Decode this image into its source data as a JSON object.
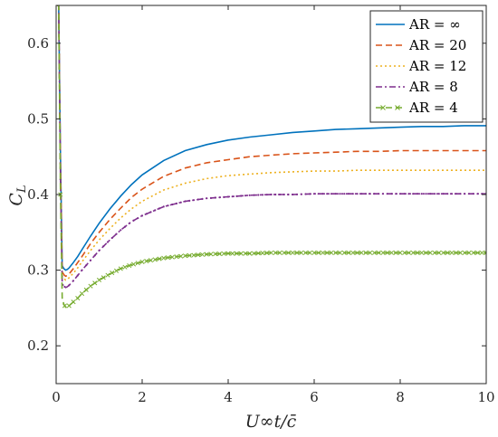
{
  "chart_data": {
    "type": "line",
    "title": "",
    "xlabel": "U∞t/c̄",
    "ylabel": "C",
    "ylabel_sub": "L",
    "xlim": [
      0,
      10
    ],
    "ylim": [
      0.15,
      0.65
    ],
    "xticks": [
      0,
      2,
      4,
      6,
      8,
      10
    ],
    "yticks": [
      0.2,
      0.3,
      0.4,
      0.5,
      0.6
    ],
    "grid": false,
    "legend_position": "top-right",
    "x": [
      0.02,
      0.06,
      0.1,
      0.14,
      0.18,
      0.22,
      0.26,
      0.3,
      0.4,
      0.5,
      0.6,
      0.8,
      1.0,
      1.25,
      1.5,
      1.75,
      2.0,
      2.5,
      3.0,
      3.5,
      4.0,
      4.5,
      5.0,
      5.5,
      6.0,
      6.5,
      7.0,
      7.5,
      8.0,
      8.5,
      9.0,
      9.5,
      10.0
    ],
    "series": [
      {
        "name": "AR = ∞",
        "color": "#0072BD",
        "dash": "solid",
        "marker": "none",
        "values": [
          0.65,
          0.65,
          0.45,
          0.306,
          0.302,
          0.3,
          0.301,
          0.303,
          0.31,
          0.318,
          0.327,
          0.345,
          0.362,
          0.381,
          0.398,
          0.413,
          0.426,
          0.445,
          0.458,
          0.466,
          0.472,
          0.476,
          0.479,
          0.482,
          0.484,
          0.486,
          0.487,
          0.488,
          0.489,
          0.49,
          0.49,
          0.491,
          0.491
        ]
      },
      {
        "name": "AR = 20",
        "color": "#D95319",
        "dash": "dashed",
        "marker": "none",
        "values": [
          0.65,
          0.65,
          0.44,
          0.298,
          0.294,
          0.292,
          0.293,
          0.295,
          0.302,
          0.31,
          0.318,
          0.335,
          0.35,
          0.367,
          0.382,
          0.396,
          0.407,
          0.424,
          0.435,
          0.442,
          0.446,
          0.45,
          0.452,
          0.454,
          0.455,
          0.456,
          0.457,
          0.457,
          0.458,
          0.458,
          0.458,
          0.458,
          0.458
        ]
      },
      {
        "name": "AR = 12",
        "color": "#EDB120",
        "dash": "dotted",
        "marker": "none",
        "values": [
          0.65,
          0.65,
          0.43,
          0.292,
          0.289,
          0.287,
          0.288,
          0.29,
          0.296,
          0.303,
          0.311,
          0.326,
          0.34,
          0.355,
          0.369,
          0.381,
          0.391,
          0.406,
          0.415,
          0.421,
          0.425,
          0.427,
          0.429,
          0.43,
          0.431,
          0.431,
          0.432,
          0.432,
          0.432,
          0.432,
          0.432,
          0.432,
          0.432
        ]
      },
      {
        "name": "AR = 8",
        "color": "#7E2F8E",
        "dash": "dashdot",
        "marker": "dot",
        "values": [
          0.65,
          0.65,
          0.42,
          0.282,
          0.279,
          0.277,
          0.278,
          0.28,
          0.286,
          0.293,
          0.3,
          0.313,
          0.326,
          0.34,
          0.353,
          0.364,
          0.372,
          0.384,
          0.391,
          0.395,
          0.397,
          0.399,
          0.4,
          0.4,
          0.401,
          0.401,
          0.401,
          0.401,
          0.401,
          0.401,
          0.401,
          0.401,
          0.401
        ]
      },
      {
        "name": "AR = 4",
        "color": "#77AC30",
        "dash": "dashed",
        "marker": "x",
        "values": [
          0.65,
          0.65,
          0.4,
          0.263,
          0.255,
          0.251,
          0.251,
          0.253,
          0.258,
          0.263,
          0.269,
          0.279,
          0.287,
          0.295,
          0.302,
          0.307,
          0.311,
          0.316,
          0.319,
          0.321,
          0.322,
          0.322,
          0.323,
          0.323,
          0.323,
          0.323,
          0.323,
          0.323,
          0.323,
          0.323,
          0.323,
          0.323,
          0.323
        ]
      }
    ]
  }
}
